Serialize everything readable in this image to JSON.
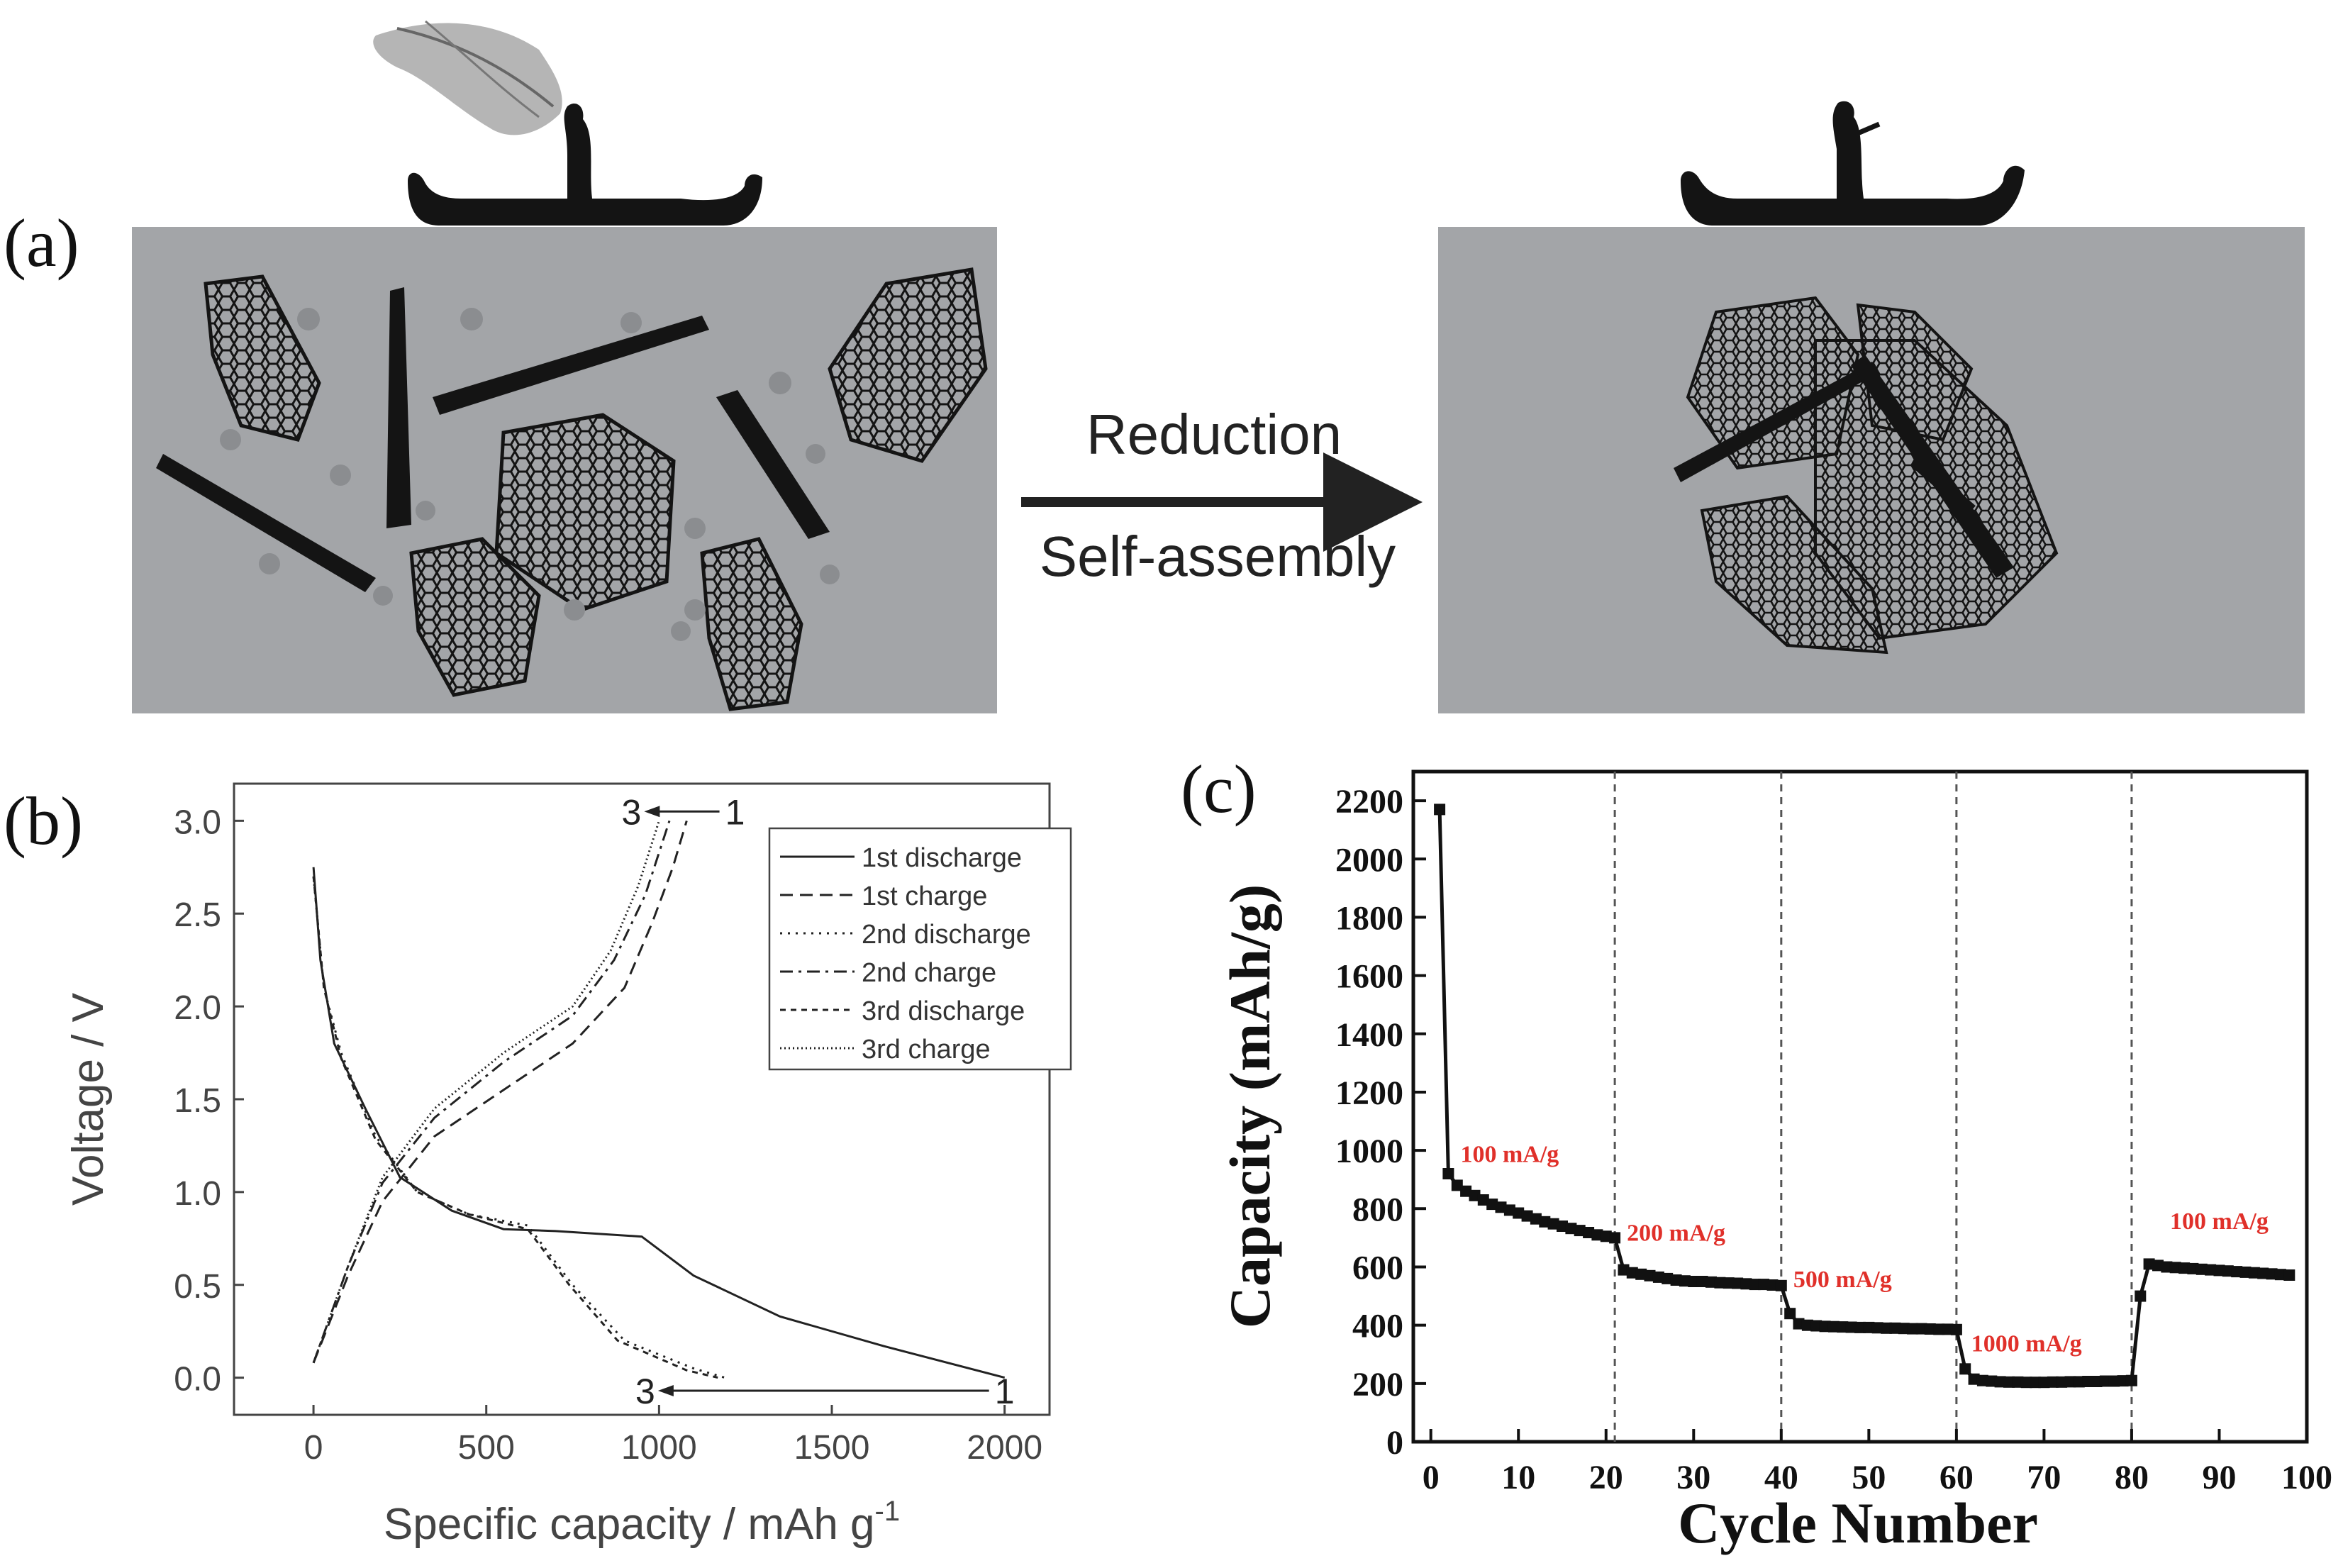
{
  "panel_a": {
    "label": "(a)",
    "arrow_top_text": "Reduction",
    "arrow_bottom_text": "Self-assembly",
    "colors": {
      "background": "#a3a5a8",
      "sheet": "#141414",
      "particle": "#8b8d90"
    }
  },
  "chart_data": [
    {
      "panel": "(b)",
      "type": "line",
      "xlabel": "Specific capacity / mAh g",
      "xlabel_sup": "-1",
      "ylabel": "Voltage / V",
      "xlim": [
        -230,
        2130
      ],
      "ylim": [
        -0.2,
        3.2
      ],
      "x_ticks": [
        0,
        500,
        1000,
        1500,
        2000
      ],
      "x_tick_labels": [
        "0",
        "500",
        "1000",
        "1500",
        "2000"
      ],
      "y_ticks": [
        0.0,
        0.5,
        1.0,
        1.5,
        2.0,
        2.5,
        3.0
      ],
      "y_tick_labels": [
        "0.0",
        "0.5",
        "1.0",
        "1.5",
        "2.0",
        "2.5",
        "3.0"
      ],
      "legend_position": "top-right",
      "series": [
        {
          "name": "1st discharge",
          "dash": "solid",
          "points": [
            [
              0,
              2.75
            ],
            [
              20,
              2.25
            ],
            [
              60,
              1.8
            ],
            [
              150,
              1.45
            ],
            [
              250,
              1.08
            ],
            [
              400,
              0.9
            ],
            [
              550,
              0.8
            ],
            [
              700,
              0.79
            ],
            [
              950,
              0.76
            ],
            [
              1100,
              0.55
            ],
            [
              1350,
              0.33
            ],
            [
              1650,
              0.17
            ],
            [
              2000,
              0.0
            ]
          ]
        },
        {
          "name": "1st charge",
          "dash": "dashed",
          "points": [
            [
              0,
              0.08
            ],
            [
              100,
              0.55
            ],
            [
              200,
              0.95
            ],
            [
              350,
              1.3
            ],
            [
              550,
              1.55
            ],
            [
              750,
              1.8
            ],
            [
              900,
              2.1
            ],
            [
              980,
              2.45
            ],
            [
              1040,
              2.75
            ],
            [
              1080,
              3.0
            ]
          ]
        },
        {
          "name": "2nd discharge",
          "dash": "dotted",
          "points": [
            [
              0,
              2.7
            ],
            [
              30,
              2.1
            ],
            [
              80,
              1.75
            ],
            [
              180,
              1.3
            ],
            [
              300,
              1.0
            ],
            [
              450,
              0.88
            ],
            [
              620,
              0.82
            ],
            [
              750,
              0.5
            ],
            [
              900,
              0.2
            ],
            [
              1100,
              0.05
            ],
            [
              1190,
              0.0
            ]
          ]
        },
        {
          "name": "2nd charge",
          "dash": "dashdot",
          "points": [
            [
              0,
              0.08
            ],
            [
              100,
              0.6
            ],
            [
              200,
              1.05
            ],
            [
              350,
              1.4
            ],
            [
              550,
              1.7
            ],
            [
              750,
              1.95
            ],
            [
              870,
              2.25
            ],
            [
              960,
              2.6
            ],
            [
              1030,
              3.0
            ]
          ]
        },
        {
          "name": "3rd discharge",
          "dash": "shortdash",
          "points": [
            [
              0,
              2.7
            ],
            [
              30,
              2.1
            ],
            [
              80,
              1.72
            ],
            [
              180,
              1.28
            ],
            [
              300,
              1.0
            ],
            [
              450,
              0.88
            ],
            [
              620,
              0.8
            ],
            [
              740,
              0.5
            ],
            [
              880,
              0.2
            ],
            [
              1080,
              0.04
            ],
            [
              1170,
              0.0
            ]
          ]
        },
        {
          "name": "3rd charge",
          "dash": "densedot",
          "points": [
            [
              0,
              0.08
            ],
            [
              100,
              0.6
            ],
            [
              200,
              1.08
            ],
            [
              350,
              1.45
            ],
            [
              550,
              1.75
            ],
            [
              750,
              2.0
            ],
            [
              860,
              2.3
            ],
            [
              940,
              2.65
            ],
            [
              1000,
              3.0
            ]
          ]
        }
      ],
      "annotations": [
        {
          "text_start": "1",
          "text_end": "3",
          "y": 3.05,
          "x_from": 1220,
          "x_to": 920
        },
        {
          "text_start": "1",
          "text_end": "3",
          "y": -0.07,
          "x_from": 2000,
          "x_to": 960
        }
      ]
    },
    {
      "panel": "(c)",
      "type": "line",
      "xlabel": "Cycle Number",
      "ylabel": "Capacity (mAh/g)",
      "xlim": [
        -2,
        100
      ],
      "ylim": [
        0,
        2300
      ],
      "x_ticks": [
        0,
        10,
        20,
        30,
        40,
        50,
        60,
        70,
        80,
        90,
        100
      ],
      "x_tick_labels": [
        "0",
        "10",
        "20",
        "30",
        "40",
        "50",
        "60",
        "70",
        "80",
        "90",
        "100"
      ],
      "y_ticks": [
        0,
        200,
        400,
        600,
        800,
        1000,
        1200,
        1400,
        1600,
        1800,
        2000,
        2200
      ],
      "y_tick_labels": [
        "0",
        "200",
        "400",
        "600",
        "800",
        "1000",
        "1200",
        "1400",
        "1600",
        "1800",
        "2000",
        "2200"
      ],
      "vlines": [
        21,
        40,
        60,
        80
      ],
      "rate_labels": [
        {
          "text": "100 mA/g",
          "x": 9,
          "y": 960
        },
        {
          "text": "200 mA/g",
          "x": 28,
          "y": 690
        },
        {
          "text": "500 mA/g",
          "x": 47,
          "y": 530
        },
        {
          "text": "1000 mA/g",
          "x": 68,
          "y": 310
        },
        {
          "text": "100 mA/g",
          "x": 90,
          "y": 730
        }
      ],
      "series": [
        {
          "name": "capacity",
          "x": [
            1,
            2,
            3,
            4,
            5,
            6,
            7,
            8,
            9,
            10,
            11,
            12,
            13,
            14,
            15,
            16,
            17,
            18,
            19,
            20,
            21,
            22,
            23,
            24,
            25,
            26,
            27,
            28,
            29,
            30,
            31,
            32,
            33,
            34,
            35,
            36,
            37,
            38,
            39,
            40,
            41,
            42,
            43,
            44,
            45,
            46,
            47,
            48,
            49,
            50,
            51,
            52,
            53,
            54,
            55,
            56,
            57,
            58,
            59,
            60,
            61,
            62,
            63,
            64,
            65,
            66,
            67,
            68,
            69,
            70,
            71,
            72,
            73,
            74,
            75,
            76,
            77,
            78,
            79,
            80,
            81,
            82,
            83,
            84,
            85,
            86,
            87,
            88,
            89,
            90,
            91,
            92,
            93,
            94,
            95,
            96,
            97,
            98
          ],
          "y": [
            2170,
            920,
            880,
            860,
            845,
            830,
            815,
            805,
            795,
            785,
            775,
            765,
            755,
            748,
            740,
            732,
            725,
            718,
            710,
            705,
            700,
            590,
            580,
            575,
            570,
            565,
            560,
            555,
            552,
            550,
            550,
            548,
            546,
            545,
            544,
            542,
            540,
            540,
            538,
            536,
            440,
            405,
            400,
            398,
            396,
            395,
            394,
            393,
            392,
            392,
            391,
            390,
            390,
            389,
            388,
            388,
            387,
            386,
            386,
            385,
            250,
            215,
            210,
            208,
            206,
            205,
            205,
            204,
            204,
            204,
            205,
            205,
            206,
            206,
            207,
            207,
            208,
            208,
            209,
            210,
            500,
            610,
            605,
            600,
            598,
            596,
            594,
            592,
            590,
            588,
            586,
            584,
            582,
            580,
            578,
            576,
            574,
            572
          ]
        }
      ]
    }
  ]
}
